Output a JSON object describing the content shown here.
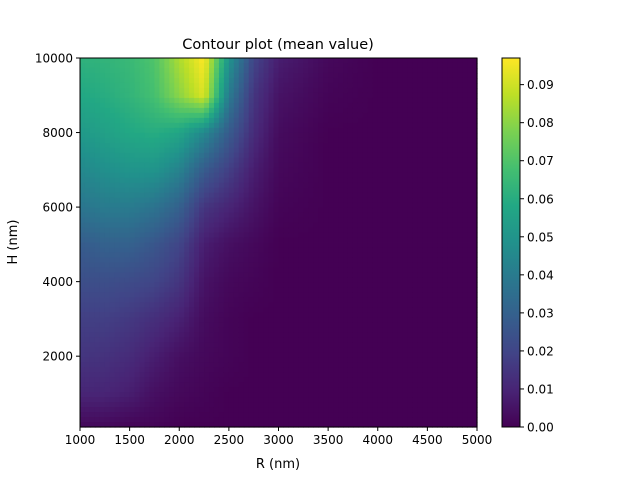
{
  "chart_data": {
    "type": "heatmap",
    "title": "Contour plot (mean value)",
    "xlabel": "R (nm)",
    "ylabel": "H (nm)",
    "xlim": [
      1000,
      5000
    ],
    "ylim": [
      100,
      10000
    ],
    "x_ticks": [
      1000,
      1500,
      2000,
      2500,
      3000,
      3500,
      4000,
      4500,
      5000
    ],
    "x_tick_labels": [
      "1000",
      "1500",
      "2000",
      "2500",
      "3000",
      "3500",
      "4000",
      "4500",
      "5000"
    ],
    "y_ticks": [
      2000,
      4000,
      6000,
      8000,
      10000
    ],
    "y_tick_labels": [
      "2000",
      "4000",
      "6000",
      "8000",
      "10000"
    ],
    "colormap": "viridis",
    "colorbar": {
      "range": [
        0,
        0.097
      ],
      "ticks": [
        0,
        0.01,
        0.02,
        0.03,
        0.04,
        0.05,
        0.06,
        0.07,
        0.08,
        0.09
      ],
      "tick_labels": [
        "0.00",
        "0.01",
        "0.02",
        "0.03",
        "0.04",
        "0.05",
        "0.06",
        "0.07",
        "0.08",
        "0.09"
      ]
    },
    "x": [
      1000,
      1250,
      1500,
      1750,
      2000,
      2250,
      2500,
      2750,
      3000,
      3500,
      4000,
      4500,
      5000
    ],
    "y": [
      100,
      1000,
      2000,
      3000,
      4000,
      5000,
      6000,
      7000,
      8000,
      9000,
      10000
    ],
    "z": [
      [
        0.002,
        0.002,
        0.001,
        0.001,
        0.0,
        0.0,
        0.0,
        0.0,
        0.0,
        0.0,
        0.0,
        0.0,
        0.0
      ],
      [
        0.01,
        0.01,
        0.008,
        0.004,
        0.002,
        0.001,
        0.0,
        0.0,
        0.0,
        0.0,
        0.0,
        0.0,
        0.0
      ],
      [
        0.015,
        0.014,
        0.012,
        0.008,
        0.004,
        0.002,
        0.001,
        0.0,
        0.0,
        0.0,
        0.0,
        0.0,
        0.0
      ],
      [
        0.018,
        0.018,
        0.016,
        0.013,
        0.009,
        0.003,
        0.001,
        0.0,
        0.0,
        0.0,
        0.0,
        0.0,
        0.0
      ],
      [
        0.023,
        0.023,
        0.022,
        0.02,
        0.015,
        0.005,
        0.002,
        0.001,
        0.0,
        0.0,
        0.0,
        0.0,
        0.0
      ],
      [
        0.028,
        0.03,
        0.03,
        0.026,
        0.02,
        0.008,
        0.004,
        0.002,
        0.0,
        0.0,
        0.0,
        0.0,
        0.0
      ],
      [
        0.038,
        0.04,
        0.04,
        0.037,
        0.03,
        0.015,
        0.01,
        0.005,
        0.001,
        0.0,
        0.0,
        0.0,
        0.0
      ],
      [
        0.045,
        0.048,
        0.05,
        0.05,
        0.043,
        0.028,
        0.018,
        0.008,
        0.002,
        0.0,
        0.0,
        0.0,
        0.0
      ],
      [
        0.052,
        0.055,
        0.058,
        0.06,
        0.057,
        0.045,
        0.028,
        0.012,
        0.003,
        0.0,
        0.0,
        0.0,
        0.0
      ],
      [
        0.058,
        0.06,
        0.063,
        0.068,
        0.08,
        0.092,
        0.04,
        0.015,
        0.005,
        0.001,
        0.0,
        0.0,
        0.0
      ],
      [
        0.062,
        0.063,
        0.065,
        0.07,
        0.085,
        0.097,
        0.05,
        0.02,
        0.008,
        0.002,
        0.0,
        0.0,
        0.0
      ]
    ]
  }
}
